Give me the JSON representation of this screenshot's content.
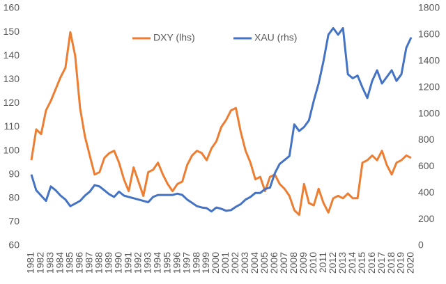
{
  "chart_data": {
    "type": "line",
    "x": [
      1981,
      1981.5,
      1982,
      1982.5,
      1983,
      1983.5,
      1984,
      1984.5,
      1985,
      1985.5,
      1986,
      1986.5,
      1987,
      1987.5,
      1988,
      1988.5,
      1989,
      1989.5,
      1990,
      1990.5,
      1991,
      1991.5,
      1992,
      1992.5,
      1993,
      1993.5,
      1994,
      1994.5,
      1995,
      1995.5,
      1996,
      1996.5,
      1997,
      1997.5,
      1998,
      1998.5,
      1999,
      1999.5,
      2000,
      2000.5,
      2001,
      2001.5,
      2002,
      2002.5,
      2003,
      2003.5,
      2004,
      2004.5,
      2005,
      2005.5,
      2006,
      2006.5,
      2007,
      2007.5,
      2008,
      2008.5,
      2009,
      2009.5,
      2010,
      2010.5,
      2011,
      2011.5,
      2012,
      2012.5,
      2013,
      2013.5,
      2014,
      2014.5,
      2015,
      2015.5,
      2016,
      2016.5,
      2017,
      2017.5,
      2018,
      2018.5,
      2019,
      2019.5,
      2020
    ],
    "series": [
      {
        "name": "DXY (lhs)",
        "color": "#ed7d31",
        "axis": "y",
        "values": [
          96,
          109,
          107,
          117,
          121,
          126,
          131,
          135,
          150,
          140,
          118,
          106,
          98,
          90,
          91,
          97,
          99,
          100,
          95,
          88,
          83,
          93,
          87,
          81,
          91,
          92,
          95,
          90,
          86,
          83,
          86,
          87,
          94,
          98,
          100,
          99,
          96,
          101,
          104,
          110,
          113,
          117,
          118,
          108,
          100,
          95,
          88,
          89,
          83,
          89,
          90,
          86,
          84,
          81,
          75,
          73,
          86,
          78,
          77,
          84,
          78,
          74,
          80,
          81,
          80,
          82,
          80,
          80,
          95,
          96,
          98,
          96,
          100,
          94,
          90,
          95,
          96,
          98,
          97
        ]
      },
      {
        "name": "XAU (rhs)",
        "color": "#4472c4",
        "axis": "y2",
        "values": [
          540,
          420,
          380,
          340,
          450,
          420,
          380,
          350,
          300,
          320,
          340,
          380,
          410,
          460,
          450,
          420,
          390,
          370,
          410,
          380,
          370,
          360,
          350,
          340,
          330,
          370,
          385,
          385,
          385,
          385,
          395,
          385,
          350,
          325,
          300,
          290,
          285,
          260,
          290,
          280,
          265,
          270,
          295,
          315,
          350,
          370,
          400,
          400,
          430,
          440,
          550,
          620,
          650,
          680,
          920,
          870,
          900,
          950,
          1100,
          1230,
          1400,
          1600,
          1650,
          1600,
          1650,
          1300,
          1270,
          1290,
          1200,
          1120,
          1250,
          1330,
          1230,
          1280,
          1330,
          1250,
          1300,
          1500,
          1580
        ]
      }
    ],
    "xlim": [
      1981,
      2020
    ],
    "xticks": [
      1981,
      1982,
      1983,
      1984,
      1985,
      1986,
      1987,
      1988,
      1989,
      1990,
      1991,
      1992,
      1993,
      1994,
      1995,
      1996,
      1997,
      1998,
      1999,
      2000,
      2001,
      2002,
      2003,
      2004,
      2005,
      2006,
      2007,
      2008,
      2009,
      2010,
      2011,
      2012,
      2013,
      2014,
      2015,
      2016,
      2017,
      2018,
      2019,
      2020
    ],
    "ylim": [
      60,
      160
    ],
    "yticks": [
      60,
      70,
      80,
      90,
      100,
      110,
      120,
      130,
      140,
      150,
      160
    ],
    "y2lim": [
      0,
      1800
    ],
    "y2ticks": [
      0,
      200,
      400,
      600,
      800,
      1000,
      1200,
      1400,
      1600,
      1800
    ],
    "grid": false,
    "legend": "top"
  }
}
